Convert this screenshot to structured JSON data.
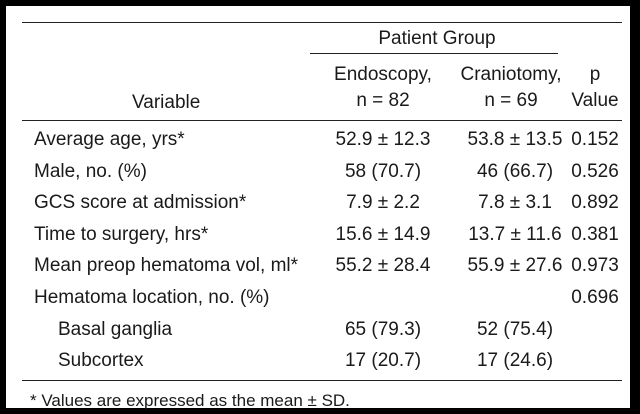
{
  "header": {
    "group_label": "Patient Group",
    "variable_label": "Variable",
    "endoscopy_line1": "Endoscopy,",
    "endoscopy_line2": "n = 82",
    "craniotomy_line1": "Craniotomy,",
    "craniotomy_line2": "n = 69",
    "p_line1": "p",
    "p_line2": "Value"
  },
  "rows": [
    {
      "variable": "Average age, yrs*",
      "endoscopy": "52.9 ± 12.3",
      "craniotomy": "53.8 ± 13.5",
      "p": "0.152",
      "indent": false
    },
    {
      "variable": "Male, no. (%)",
      "endoscopy": "58 (70.7)",
      "craniotomy": "46 (66.7)",
      "p": "0.526",
      "indent": false
    },
    {
      "variable": "GCS score at admission*",
      "endoscopy": "7.9 ± 2.2",
      "craniotomy": "7.8 ± 3.1",
      "p": "0.892",
      "indent": false
    },
    {
      "variable": "Time to surgery, hrs*",
      "endoscopy": "15.6 ± 14.9",
      "craniotomy": "13.7 ± 11.6",
      "p": "0.381",
      "indent": false
    },
    {
      "variable": "Mean preop hematoma vol, ml*",
      "endoscopy": "55.2 ± 28.4",
      "craniotomy": "55.9 ± 27.6",
      "p": "0.973",
      "indent": false
    },
    {
      "variable": "Hematoma location, no. (%)",
      "endoscopy": "",
      "craniotomy": "",
      "p": "0.696",
      "indent": false
    },
    {
      "variable": "Basal ganglia",
      "endoscopy": "65 (79.3)",
      "craniotomy": "52 (75.4)",
      "p": "",
      "indent": true
    },
    {
      "variable": "Subcortex",
      "endoscopy": "17 (20.7)",
      "craniotomy": "17 (24.6)",
      "p": "",
      "indent": true
    }
  ],
  "footnote": "*  Values are expressed as the mean ± SD."
}
